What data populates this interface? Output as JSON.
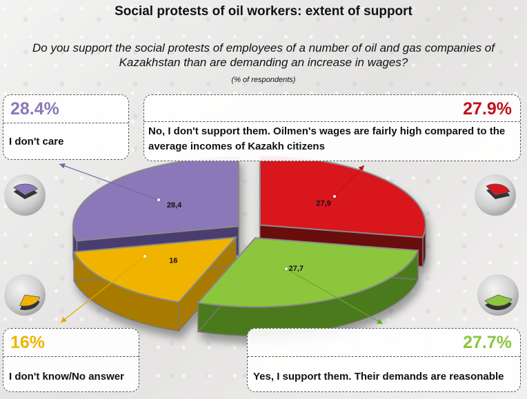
{
  "title": "Social protests of oil workers: extent of support",
  "question": "Do you support the social protests of employees of a number of oil and gas companies of Kazakhstan than are demanding an increase in wages?",
  "units": "(% of respondents)",
  "legend_boxes": [
    {
      "pct": "28.4%",
      "label": "I don't care",
      "color": "#8a78b8"
    },
    {
      "pct": "27.9%",
      "label": "No, I don't support them. Oilmen's wages are fairly high compared to the average incomes of Kazakh citizens",
      "color": "#c0111a"
    },
    {
      "pct": "16%",
      "label": "I don't know/No answer",
      "color": "#f0b400"
    },
    {
      "pct": "27.7%",
      "label": "Yes, I support them. Their demands are reasonable",
      "color": "#8cc63e"
    }
  ],
  "chart_data": {
    "type": "pie",
    "style": "3d-exploded",
    "title": "Social protests of oil workers: extent of support",
    "slices": [
      {
        "label": "I don't care",
        "value": 28.4,
        "data_label": "28,4",
        "color": "#8a78b8",
        "side_color": "#4a3c70"
      },
      {
        "label": "No, I don't support them. Oilmen's wages are fairly high compared to the average incomes of Kazakh citizens",
        "value": 27.9,
        "data_label": "27,9",
        "color": "#d9161e",
        "side_color": "#6a0a0e"
      },
      {
        "label": "Yes, I support them. Their demands are reasonable",
        "value": 27.7,
        "data_label": "27,7",
        "color": "#8cc63e",
        "side_color": "#4c7a1c"
      },
      {
        "label": "I don't know/No answer",
        "value": 16,
        "data_label": "16",
        "color": "#f0b400",
        "side_color": "#a87a00"
      }
    ],
    "legend": "corners"
  }
}
